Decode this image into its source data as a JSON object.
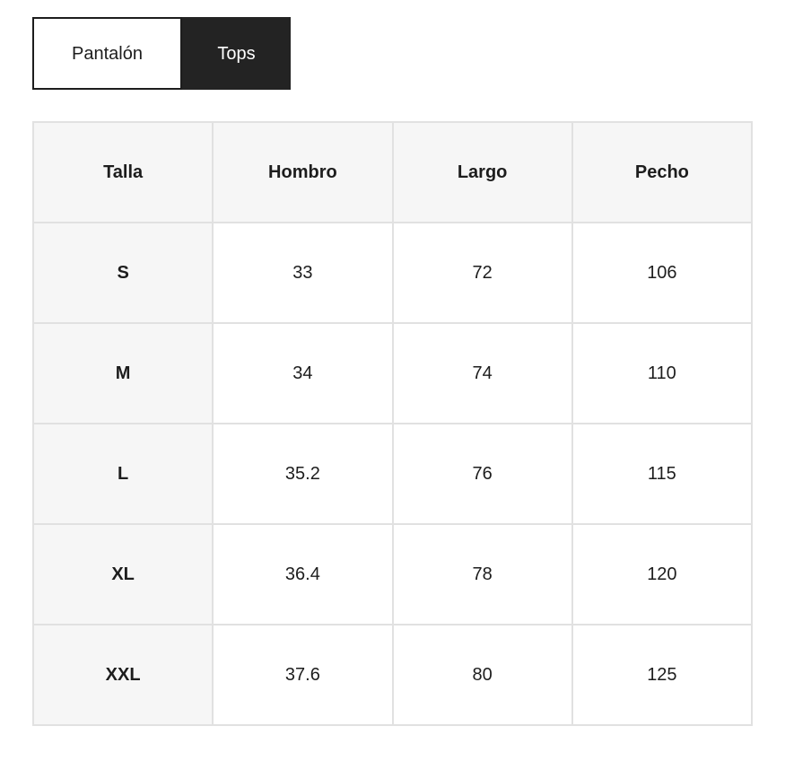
{
  "tabs": [
    {
      "label": "Pantalón",
      "active": false
    },
    {
      "label": "Tops",
      "active": true
    }
  ],
  "table": {
    "columns": [
      "Talla",
      "Hombro",
      "Largo",
      "Pecho"
    ],
    "rows": [
      [
        "S",
        "33",
        "72",
        "106"
      ],
      [
        "M",
        "34",
        "74",
        "110"
      ],
      [
        "L",
        "35.2",
        "76",
        "115"
      ],
      [
        "XL",
        "36.4",
        "78",
        "120"
      ],
      [
        "XXL",
        "37.6",
        "80",
        "125"
      ]
    ]
  },
  "colors": {
    "active_tab_bg": "#232323",
    "active_tab_text": "#ffffff",
    "inactive_tab_border": "#1d1d1d",
    "header_cell_bg": "#f6f6f6",
    "table_border": "#e1e1e1",
    "text": "#1d1d1d",
    "page_bg": "#ffffff"
  }
}
